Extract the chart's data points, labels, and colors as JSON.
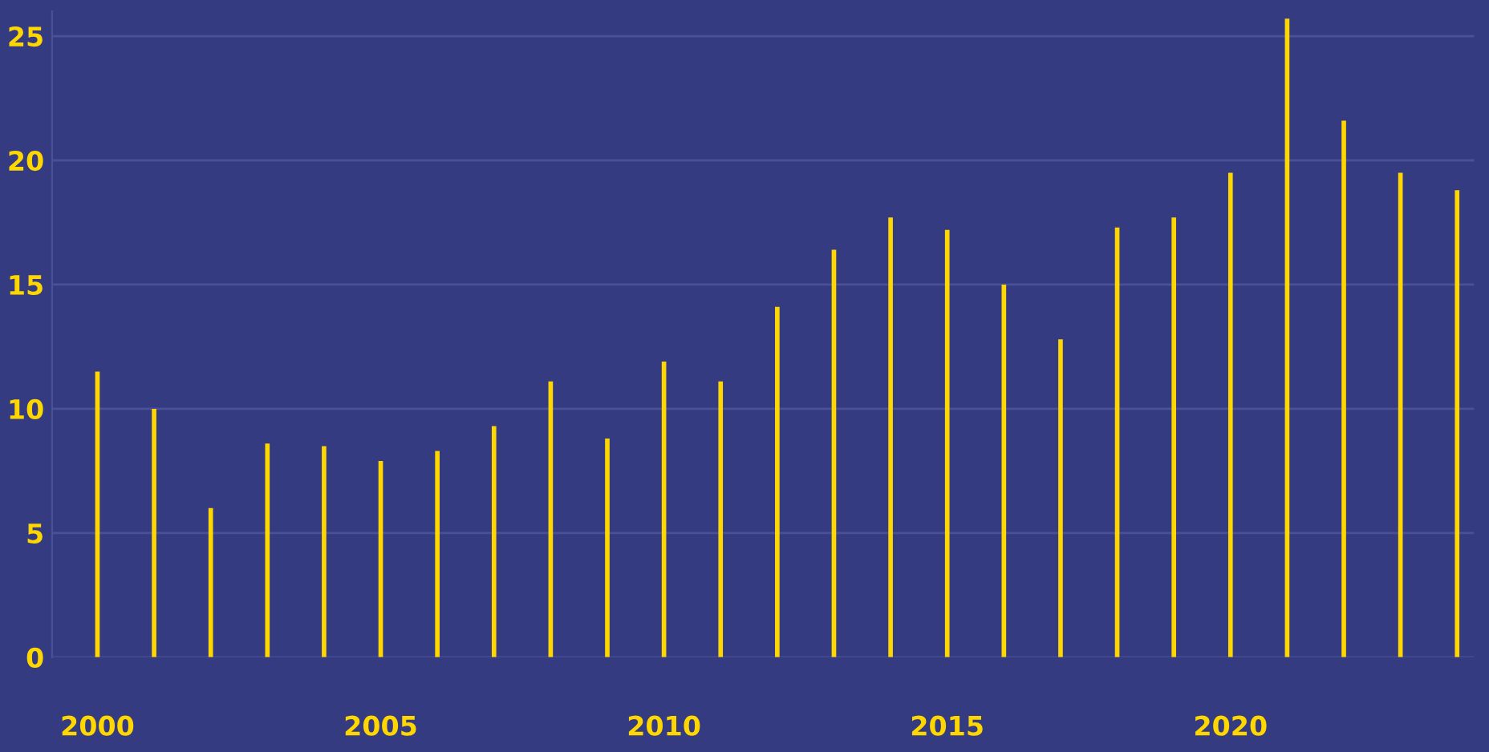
{
  "chart_data": {
    "type": "bar",
    "x": [
      2000,
      2001,
      2002,
      2003,
      2004,
      2005,
      2006,
      2007,
      2008,
      2009,
      2010,
      2011,
      2012,
      2013,
      2014,
      2015,
      2016,
      2017,
      2018,
      2019,
      2020,
      2021,
      2022,
      2023,
      2024
    ],
    "values": [
      11.5,
      10,
      6,
      8.6,
      8.5,
      7.9,
      8.3,
      9.3,
      11.1,
      8.8,
      11.9,
      11.1,
      14.1,
      16.4,
      17.7,
      17.2,
      15,
      12.8,
      17.3,
      17.7,
      19.5,
      25.7,
      21.6,
      19.5,
      18.8
    ],
    "color": "#ffd700",
    "xlim": [
      1999.2,
      2024.3
    ],
    "xticks": [
      2000,
      2005,
      2010,
      2015,
      2020
    ],
    "ylim": [
      0,
      26
    ],
    "yticks": [
      0,
      5,
      10,
      15,
      20,
      25
    ],
    "grid": "y"
  }
}
